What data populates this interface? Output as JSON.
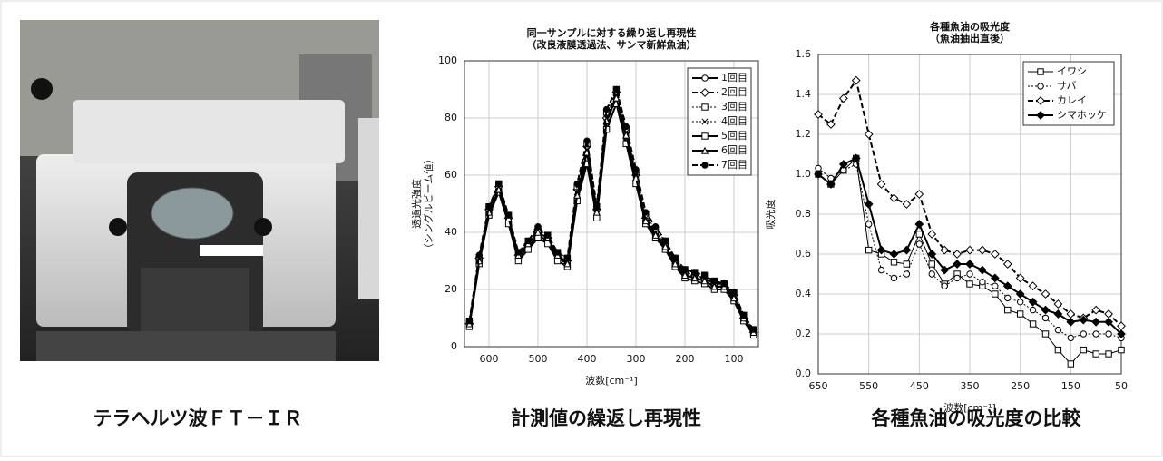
{
  "chart_data": [
    {
      "type": "line",
      "title": "同一サンプルに対する繰り返し再現性",
      "subtitle": "（改良液膜透過法、サンマ新鮮魚油）",
      "xlabel": "波数[cm⁻¹]",
      "ylabel": [
        "透過光強度",
        "（シングルビーム値）"
      ],
      "x": [
        640,
        620,
        600,
        580,
        560,
        540,
        520,
        500,
        480,
        460,
        440,
        420,
        400,
        380,
        360,
        340,
        320,
        300,
        280,
        260,
        240,
        220,
        200,
        180,
        160,
        140,
        120,
        100,
        80,
        60
      ],
      "xlim": [
        650,
        50
      ],
      "xticks": [
        600,
        500,
        400,
        300,
        200,
        100
      ],
      "ylim": [
        0,
        100
      ],
      "yticks": [
        0,
        20,
        40,
        60,
        80,
        100
      ],
      "grid": true,
      "legend": "upper right",
      "series": [
        {
          "name": "1回目",
          "color": "#000000",
          "dash": "solid",
          "marker": "circle",
          "values": [
            8,
            30,
            47,
            55,
            44,
            31,
            35,
            39,
            37,
            31,
            29,
            52,
            66,
            46,
            78,
            88,
            73,
            58,
            44,
            39,
            35,
            29,
            25,
            24,
            23,
            21,
            21,
            17,
            10,
            5
          ]
        },
        {
          "name": "2回目",
          "color": "#000000",
          "dash": "dashed",
          "marker": "diamond",
          "values": [
            8,
            31,
            48,
            56,
            45,
            32,
            36,
            41,
            38,
            32,
            30,
            55,
            70,
            48,
            80,
            89,
            75,
            60,
            45,
            40,
            36,
            30,
            26,
            25,
            24,
            22,
            22,
            18,
            10,
            5
          ]
        },
        {
          "name": "3回目",
          "color": "#000000",
          "dash": "dotted",
          "marker": "square",
          "values": [
            9,
            31,
            49,
            57,
            46,
            33,
            37,
            41,
            39,
            33,
            31,
            56,
            71,
            49,
            82,
            90,
            76,
            61,
            46,
            41,
            37,
            31,
            27,
            26,
            25,
            23,
            22,
            19,
            11,
            6
          ]
        },
        {
          "name": "4回目",
          "color": "#000000",
          "dash": "dotted",
          "marker": "x",
          "values": [
            8,
            30,
            48,
            56,
            45,
            32,
            36,
            40,
            38,
            32,
            30,
            54,
            69,
            48,
            80,
            88,
            75,
            60,
            45,
            40,
            36,
            30,
            26,
            25,
            24,
            22,
            22,
            18,
            10,
            5
          ]
        },
        {
          "name": "5回目",
          "color": "#000000",
          "dash": "solid",
          "marker": "square",
          "values": [
            7,
            29,
            46,
            54,
            43,
            30,
            34,
            38,
            36,
            30,
            28,
            51,
            64,
            45,
            76,
            85,
            71,
            57,
            43,
            38,
            34,
            28,
            24,
            23,
            22,
            20,
            20,
            16,
            9,
            4
          ]
        },
        {
          "name": "6回目",
          "color": "#000000",
          "dash": "solid",
          "marker": "triangle",
          "values": [
            8,
            30,
            47,
            55,
            45,
            32,
            36,
            40,
            38,
            32,
            29,
            53,
            68,
            47,
            79,
            87,
            74,
            59,
            44,
            39,
            35,
            29,
            25,
            24,
            23,
            21,
            21,
            17,
            10,
            5
          ]
        },
        {
          "name": "7回目",
          "color": "#000000",
          "dash": "dashed",
          "marker": "dot",
          "values": [
            9,
            32,
            49,
            57,
            46,
            33,
            37,
            42,
            39,
            33,
            31,
            57,
            72,
            49,
            83,
            90,
            77,
            62,
            47,
            42,
            37,
            31,
            27,
            26,
            25,
            23,
            22,
            19,
            11,
            6
          ]
        }
      ]
    },
    {
      "type": "line",
      "title": "各種魚油の吸光度",
      "subtitle": "（魚油抽出直後）",
      "xlabel": "波数[cm⁻¹]",
      "ylabel": [
        "吸光度"
      ],
      "x": [
        650,
        625,
        600,
        575,
        550,
        525,
        500,
        475,
        450,
        425,
        400,
        375,
        350,
        325,
        300,
        275,
        250,
        225,
        200,
        175,
        150,
        125,
        100,
        75,
        50
      ],
      "xlim": [
        650,
        50
      ],
      "xticks": [
        650,
        550,
        450,
        350,
        250,
        150,
        50
      ],
      "ylim": [
        0,
        1.6
      ],
      "yticks": [
        {
          "value": 0,
          "label": "0.0"
        },
        0.2,
        0.4,
        0.6,
        0.8,
        {
          "value": 1,
          "label": "1.0"
        },
        1.2,
        1.4,
        1.6
      ],
      "grid": true,
      "legend": "upper right",
      "series": [
        {
          "name": "イワシ",
          "color": "#000000",
          "dash": "thin",
          "marker": "square",
          "values": [
            1.0,
            0.95,
            1.02,
            1.08,
            0.62,
            0.6,
            0.56,
            0.55,
            0.7,
            0.55,
            0.45,
            0.5,
            0.45,
            0.44,
            0.4,
            0.32,
            0.3,
            0.25,
            0.2,
            0.12,
            0.05,
            0.12,
            0.1,
            0.1,
            0.12
          ]
        },
        {
          "name": "サバ",
          "color": "#000000",
          "dash": "dotted",
          "marker": "circle",
          "values": [
            1.03,
            0.98,
            1.02,
            1.05,
            0.75,
            0.52,
            0.48,
            0.5,
            0.65,
            0.5,
            0.44,
            0.48,
            0.5,
            0.46,
            0.44,
            0.38,
            0.36,
            0.32,
            0.28,
            0.22,
            0.18,
            0.2,
            0.2,
            0.2,
            0.18
          ]
        },
        {
          "name": "カレイ",
          "color": "#000000",
          "dash": "dashed",
          "marker": "diamond",
          "values": [
            1.3,
            1.25,
            1.38,
            1.47,
            1.2,
            0.95,
            0.88,
            0.85,
            0.9,
            0.7,
            0.62,
            0.6,
            0.62,
            0.62,
            0.6,
            0.55,
            0.48,
            0.44,
            0.4,
            0.35,
            0.3,
            0.28,
            0.32,
            0.3,
            0.24
          ]
        },
        {
          "name": "シマホッケ",
          "color": "#000000",
          "dash": "solid",
          "marker": "filled-diamond",
          "values": [
            1.0,
            0.95,
            1.05,
            1.08,
            0.85,
            0.62,
            0.6,
            0.62,
            0.75,
            0.6,
            0.52,
            0.55,
            0.55,
            0.52,
            0.48,
            0.44,
            0.4,
            0.36,
            0.32,
            0.3,
            0.26,
            0.27,
            0.26,
            0.26,
            0.2
          ]
        }
      ]
    }
  ],
  "captions": [
    "テラヘルツ波ＦＴ－ＩＲ",
    "計測値の繰返し再現性",
    "各種魚油の吸光度の比較"
  ]
}
